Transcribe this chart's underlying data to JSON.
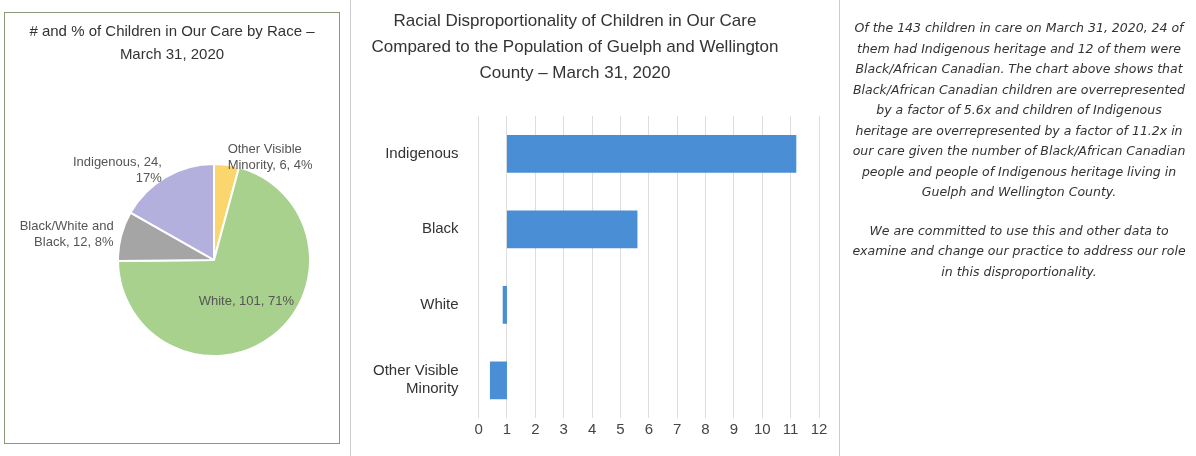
{
  "chart_data": [
    {
      "type": "pie",
      "title": "# and % of Children in Our Care by Race – March 31, 2020",
      "categories": [
        "Other Visible Minority",
        "White",
        "Black/White and Black",
        "Indigenous"
      ],
      "values": [
        6,
        101,
        12,
        24
      ],
      "colors": [
        "#fbd66e",
        "#a9d18e",
        "#a5a5a5",
        "#b4b0dd"
      ],
      "value_labels": [
        "6, 4%",
        "101, 71%",
        "12, 8%",
        "24, 17%"
      ],
      "legend": false
    },
    {
      "type": "bar",
      "orientation": "horizontal",
      "title": "Racial Disproportionality of Children in Our Care Compared to the Population of Guelph and Wellington County – March 31, 2020",
      "categories": [
        "Indigenous",
        "Black",
        "White",
        "Other Visible Minority"
      ],
      "base": [
        1,
        1,
        1,
        1
      ],
      "values": [
        10.2,
        4.6,
        -0.15,
        -0.6
      ],
      "color": "#4a8fd6",
      "xlim": [
        0,
        12
      ],
      "xticks": [
        0,
        1,
        2,
        3,
        4,
        5,
        6,
        7,
        8,
        9,
        10,
        11,
        12
      ],
      "grid": "x",
      "legend": false
    },
    {
      "type": "other",
      "annotations": [
        "Of the 143 children in care on March 31, 2020, 24 of them had Indigenous heritage and 12 of them were Black/African Canadian.  The chart above shows that Black/African Canadian children are overrepresented by a factor of 5.6x and children of Indigenous heritage are overrepresented by a factor of 11.2x in our care given the number of Black/African Canadian people and people of Indigenous heritage living in Guelph and Wellington County.",
        "We are committed to use this and other data to examine and change our practice to address our role in this disproportionality."
      ]
    }
  ]
}
